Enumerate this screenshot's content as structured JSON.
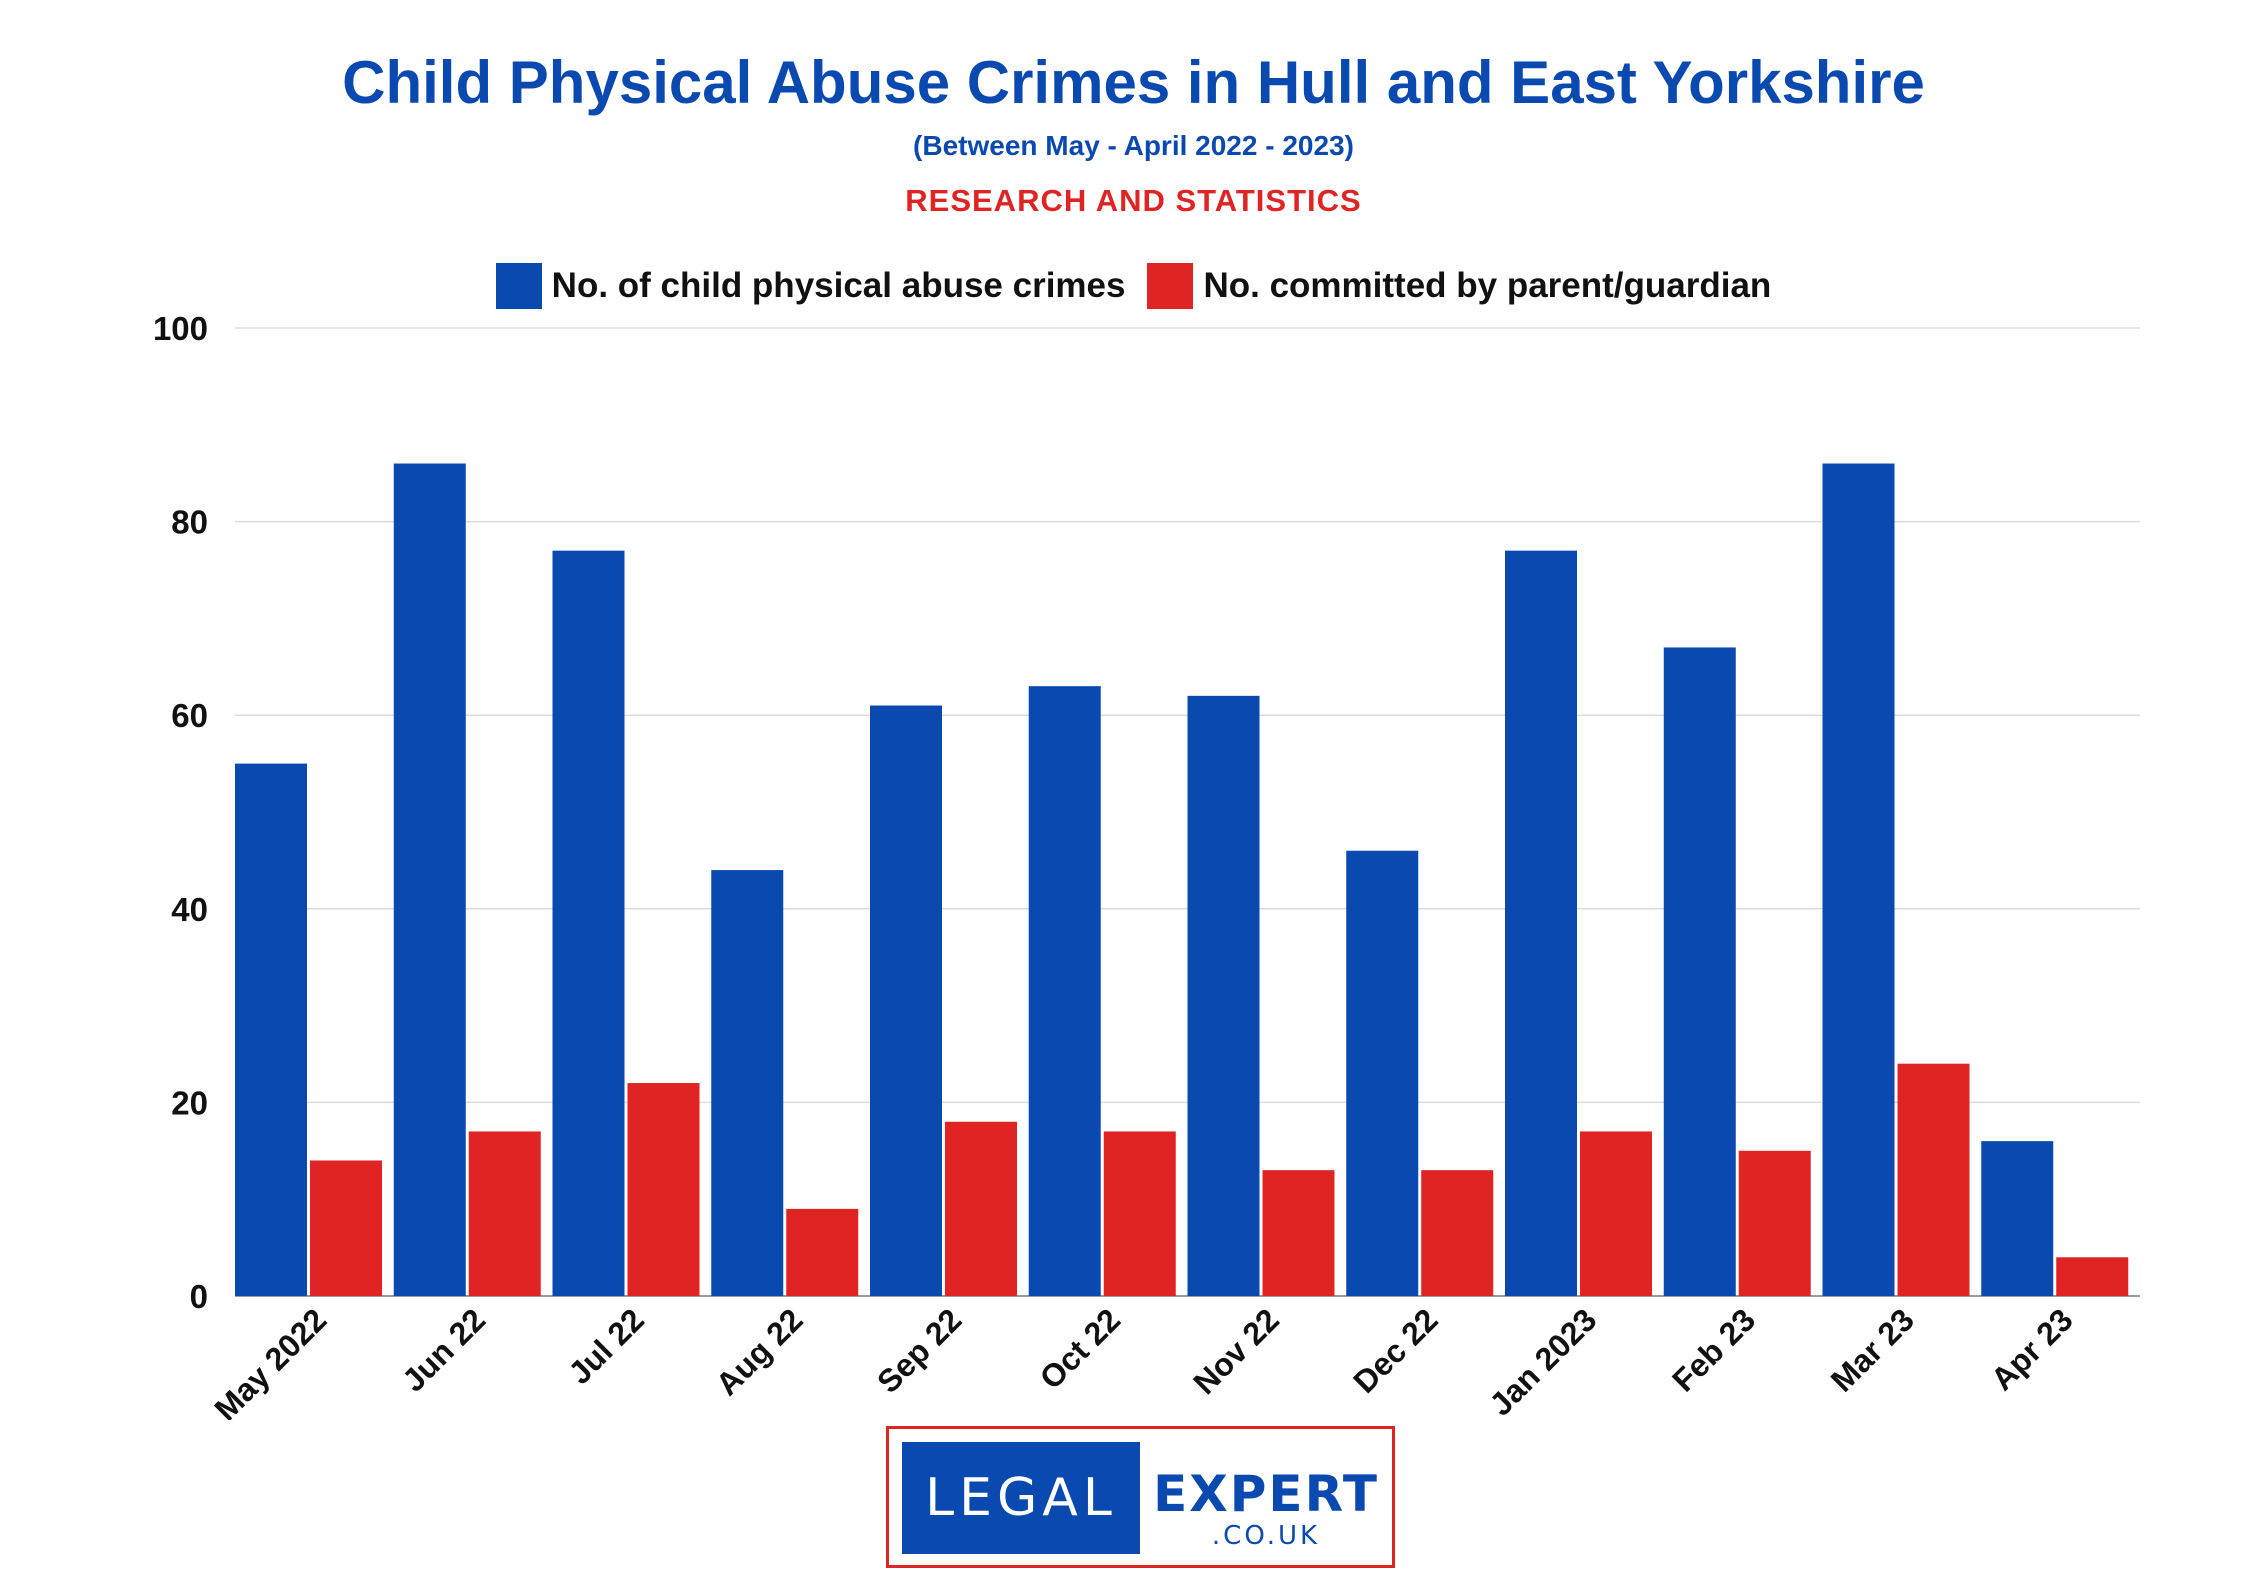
{
  "chart_data": {
    "type": "bar",
    "title": "Child Physical Abuse Crimes in Hull and East Yorkshire",
    "subtitle": "(Between May - April 2022 - 2023)",
    "tagline": "RESEARCH AND STATISTICS",
    "categories": [
      "May 2022",
      "Jun 22",
      "Jul 22",
      "Aug 22",
      "Sep 22",
      "Oct 22",
      "Nov 22",
      "Dec 22",
      "Jan 2023",
      "Feb 23",
      "Mar 23",
      "Apr 23"
    ],
    "series": [
      {
        "name": "No. of child physical abuse crimes",
        "color": "#0a4ab0",
        "values": [
          55,
          86,
          77,
          44,
          61,
          63,
          62,
          46,
          77,
          67,
          86,
          16
        ]
      },
      {
        "name": "No. committed by parent/guardian",
        "color": "#e02424",
        "values": [
          14,
          17,
          22,
          9,
          18,
          17,
          13,
          13,
          17,
          15,
          24,
          4
        ]
      }
    ],
    "ylim": [
      0,
      100
    ],
    "yticks": [
      0,
      20,
      40,
      60,
      80,
      100
    ],
    "xlabel": "",
    "ylabel": "",
    "grid": true,
    "legend": "top-center"
  },
  "logo": {
    "left_text": "LEGAL",
    "right_text": "EXPERT",
    "sub_text": ".CO.UK"
  }
}
